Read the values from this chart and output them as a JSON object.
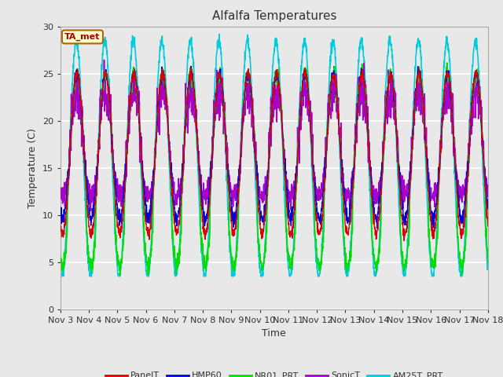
{
  "title": "Alfalfa Temperatures",
  "xlabel": "Time",
  "ylabel": "Temperature (C)",
  "ylim": [
    0,
    30
  ],
  "background_color": "#e8e8e8",
  "figure_color": "#e8e8e8",
  "grid_color": "white",
  "annotation_text": "TA_met",
  "annotation_color": "#aa0000",
  "annotation_bg": "#ffffcc",
  "annotation_border": "#aa6600",
  "x_tick_labels": [
    "Nov 3",
    "Nov 4",
    "Nov 5",
    "Nov 6",
    "Nov 7",
    "Nov 8",
    "Nov 9",
    "Nov 10",
    "Nov 11",
    "Nov 12",
    "Nov 13",
    "Nov 14",
    "Nov 15",
    "Nov 16",
    "Nov 17",
    "Nov 18"
  ],
  "series": {
    "PanelT": {
      "color": "#dd0000",
      "lw": 1.0
    },
    "HMP60": {
      "color": "#0000dd",
      "lw": 1.0
    },
    "NR01_PRT": {
      "color": "#00dd00",
      "lw": 1.2
    },
    "SonicT": {
      "color": "#aa00cc",
      "lw": 1.2
    },
    "AM25T_PRT": {
      "color": "#00ccdd",
      "lw": 1.2
    }
  }
}
